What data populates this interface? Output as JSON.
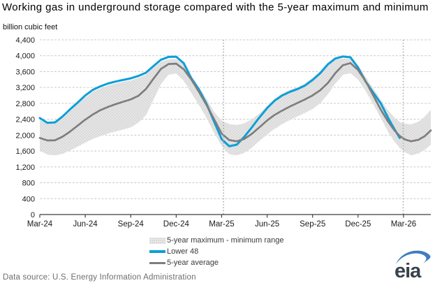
{
  "title": "Working gas in underground storage compared with the 5-year maximum and minimum",
  "y_axis_units": "billion cubic feet",
  "footer": {
    "data_source": "Data source: U.S. Energy Information Administration",
    "logo_text": "eia"
  },
  "colors": {
    "axis": "#3f3f3f",
    "grid": "#c9c9c9",
    "vline": "#aeaeae",
    "tick_text": "#1a1a1a",
    "band_fill": "#e6e6e6",
    "band_dot": "#c2c2c2",
    "lower48_blue": "#0c9ed9",
    "average_gray": "#7e7e7e",
    "source_text": "#6e6e6e",
    "logo_letters": "#39424a",
    "logo_swoosh": "#3f7dc2"
  },
  "chart_data": {
    "type": "line",
    "title": "Working gas in underground storage compared with the 5-year maximum and minimum",
    "xlabel": "",
    "ylabel": "billion cubic feet",
    "ylim": [
      0,
      4400
    ],
    "ytick_step": 400,
    "grid": "horizontal-dashed",
    "legend_position": "bottom",
    "x_unit": "months since Mar-2024",
    "x_range": [
      0,
      25.8
    ],
    "x_tick_positions": [
      0,
      3,
      6,
      9,
      12,
      15,
      18,
      21,
      24
    ],
    "x_tick_labels": [
      "Mar-24",
      "Jun-24",
      "Sep-24",
      "Dec-24",
      "Mar-25",
      "Jun-25",
      "Sep-25",
      "Dec-25",
      "Mar-26"
    ],
    "vlines": [
      12.12,
      23.98
    ],
    "x": [
      0,
      0.5,
      1,
      1.5,
      2,
      2.5,
      3,
      3.5,
      4,
      4.5,
      5,
      5.5,
      6,
      6.5,
      7,
      7.5,
      8,
      8.5,
      9,
      9.5,
      10,
      10.5,
      11,
      11.5,
      12,
      12.5,
      13,
      13.5,
      14,
      14.5,
      15,
      15.5,
      16,
      16.5,
      17,
      17.5,
      18,
      18.5,
      19,
      19.5,
      20,
      20.5,
      21,
      21.5,
      22,
      22.5,
      23,
      23.4,
      23.75,
      24.1,
      24.5,
      25,
      25.4,
      25.8
    ],
    "series": [
      {
        "name": "5-year maximum - minimum range",
        "type": "band",
        "fill": "#e6e6e6",
        "dot": "#c2c2c2",
        "upper": [
          2380,
          2290,
          2300,
          2440,
          2610,
          2780,
          2950,
          3090,
          3180,
          3250,
          3300,
          3340,
          3380,
          3440,
          3520,
          3700,
          3850,
          3910,
          3915,
          3790,
          3490,
          3210,
          2910,
          2590,
          2360,
          2280,
          2255,
          2300,
          2400,
          2550,
          2730,
          2920,
          3050,
          3140,
          3210,
          3300,
          3440,
          3610,
          3820,
          3910,
          3930,
          3925,
          3760,
          3470,
          3180,
          2890,
          2610,
          2440,
          2330,
          2290,
          2270,
          2340,
          2470,
          2640
        ],
        "lower": [
          1610,
          1510,
          1490,
          1530,
          1610,
          1710,
          1810,
          1905,
          1975,
          2040,
          2090,
          2140,
          2195,
          2310,
          2500,
          2890,
          3290,
          3520,
          3555,
          3370,
          3060,
          2760,
          2430,
          2060,
          1730,
          1520,
          1490,
          1555,
          1685,
          1855,
          2020,
          2160,
          2280,
          2380,
          2470,
          2560,
          2660,
          2800,
          3020,
          3300,
          3520,
          3560,
          3400,
          3110,
          2780,
          2430,
          2070,
          1840,
          1670,
          1570,
          1490,
          1540,
          1630,
          1760
        ]
      },
      {
        "name": "Lower 48",
        "type": "line",
        "color": "#0c9ed9",
        "width": 3,
        "values": [
          2430,
          2310,
          2320,
          2470,
          2650,
          2820,
          3000,
          3140,
          3230,
          3300,
          3350,
          3390,
          3430,
          3490,
          3570,
          3740,
          3900,
          3970,
          3975,
          3810,
          3430,
          3150,
          2790,
          2340,
          1900,
          1720,
          1760,
          1960,
          2200,
          2450,
          2680,
          2870,
          3000,
          3090,
          3160,
          3250,
          3390,
          3560,
          3780,
          3930,
          3980,
          3960,
          3700,
          3350,
          3070,
          2800,
          2420,
          2150,
          1930,
          null,
          null,
          null,
          null,
          null
        ]
      },
      {
        "name": "5-year average",
        "type": "line",
        "color": "#7e7e7e",
        "width": 2.7,
        "values": [
          1930,
          1865,
          1870,
          1960,
          2090,
          2240,
          2390,
          2520,
          2630,
          2710,
          2780,
          2840,
          2900,
          2990,
          3160,
          3420,
          3670,
          3790,
          3800,
          3660,
          3400,
          3090,
          2760,
          2400,
          2040,
          1875,
          1845,
          1905,
          2035,
          2200,
          2370,
          2510,
          2620,
          2720,
          2810,
          2900,
          3000,
          3130,
          3310,
          3560,
          3760,
          3815,
          3640,
          3360,
          3000,
          2640,
          2330,
          2120,
          1980,
          1890,
          1845,
          1885,
          1975,
          2120
        ]
      }
    ]
  }
}
